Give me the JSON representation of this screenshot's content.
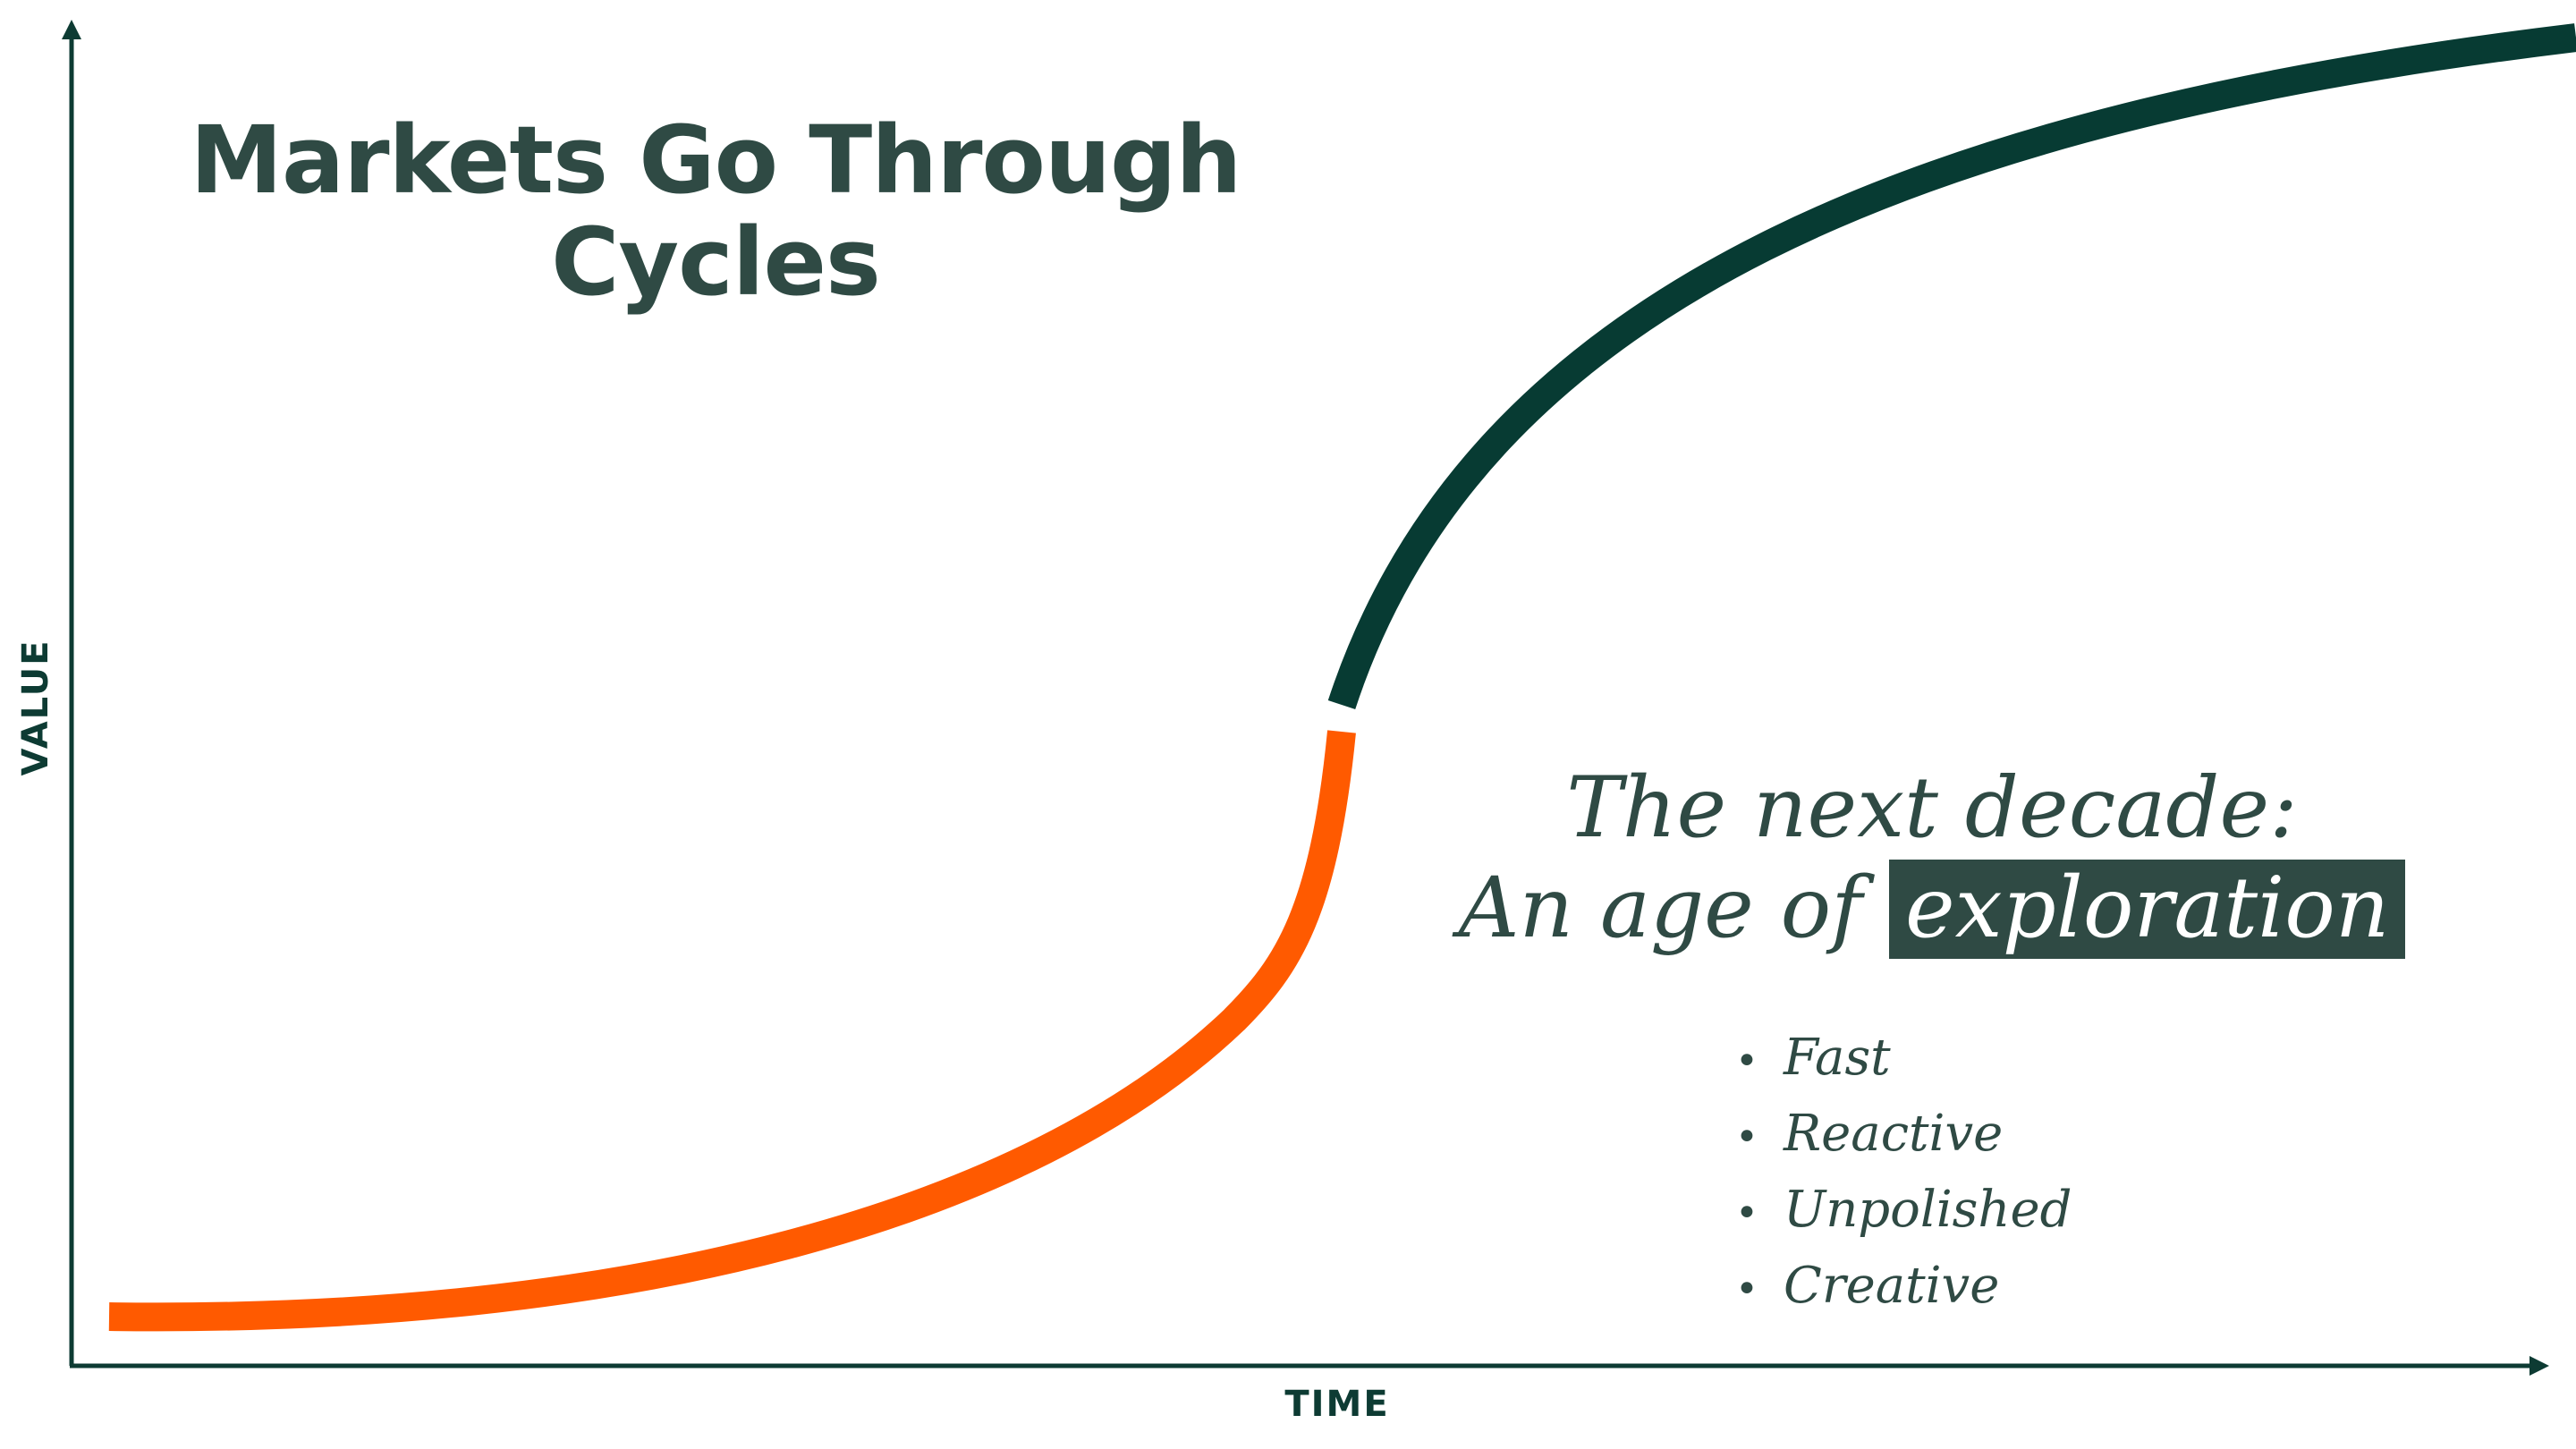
{
  "title": {
    "line1": "Markets Go Through",
    "line2": "Cycles"
  },
  "axes": {
    "x_label": "TIME",
    "y_label": "VALUE"
  },
  "callout": {
    "line1": "The next decade:",
    "line2_prefix": "An age of ",
    "line2_highlight": "exploration"
  },
  "bullets": [
    "Fast",
    "Reactive",
    "Unpolished",
    "Creative"
  ],
  "colors": {
    "axis": "#0d3b33",
    "curve_early": "#ff5a00",
    "curve_late": "#073b33",
    "text": "#2f4a44",
    "highlight_bg": "#2f4a44",
    "highlight_text": "#ffffff"
  }
}
